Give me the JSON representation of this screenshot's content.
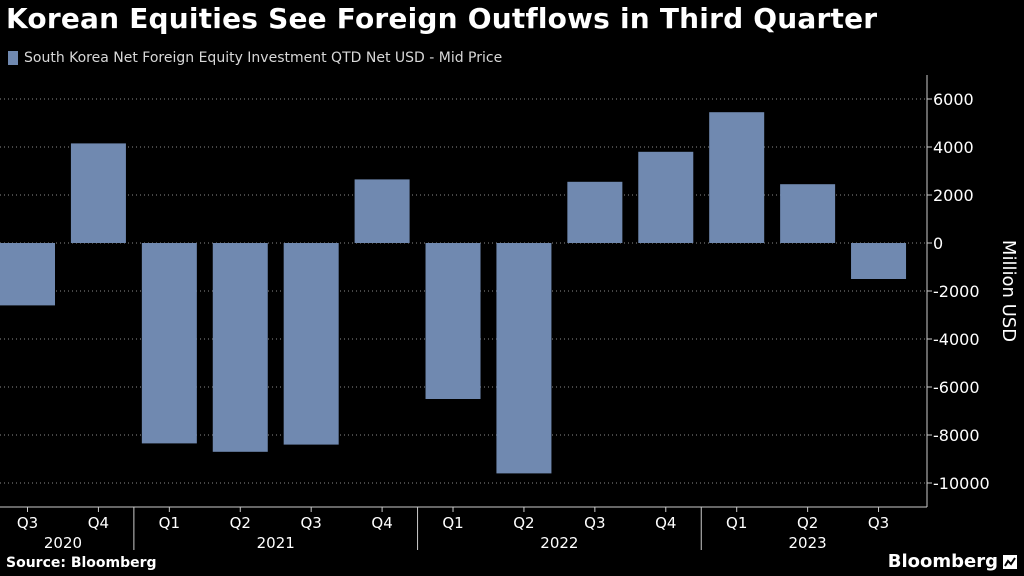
{
  "header": {
    "title": "Korean Equities See Foreign Outflows in Third Quarter"
  },
  "footer": {
    "source": "Source: Bloomberg",
    "brand": "Bloomberg"
  },
  "icons": {
    "brand_mark": "bloomberg-terminal-icon"
  },
  "colors": {
    "background": "#000000",
    "bar": "#7089b0",
    "grid": "#8c8c8c",
    "text": "#ffffff"
  },
  "chart_data": {
    "type": "bar",
    "title": "Korean Equities See Foreign Outflows in Third Quarter",
    "series": [
      {
        "name": "South Korea Net Foreign Equity Investment QTD Net USD - Mid Price",
        "values": [
          -2600,
          4150,
          -8350,
          -8700,
          -8400,
          2650,
          -6500,
          -9600,
          2550,
          3800,
          5450,
          2450,
          -1500
        ]
      }
    ],
    "categories": [
      "Q3",
      "Q4",
      "Q1",
      "Q2",
      "Q3",
      "Q4",
      "Q1",
      "Q2",
      "Q3",
      "Q4",
      "Q1",
      "Q2",
      "Q3"
    ],
    "year_labels": [
      {
        "label": "2020",
        "categories": [
          0,
          1
        ]
      },
      {
        "label": "2021",
        "categories": [
          2,
          3,
          4,
          5
        ]
      },
      {
        "label": "2022",
        "categories": [
          6,
          7,
          8,
          9
        ]
      },
      {
        "label": "2023",
        "categories": [
          10,
          11,
          12
        ]
      }
    ],
    "ylabel": "Million USD",
    "yticks": [
      6000,
      4000,
      2000,
      0,
      -2000,
      -4000,
      -6000,
      -8000,
      -10000
    ],
    "ylim": [
      -11000,
      7000
    ],
    "y_axis_side": "right",
    "grid": true,
    "legend_position": "top-left"
  }
}
